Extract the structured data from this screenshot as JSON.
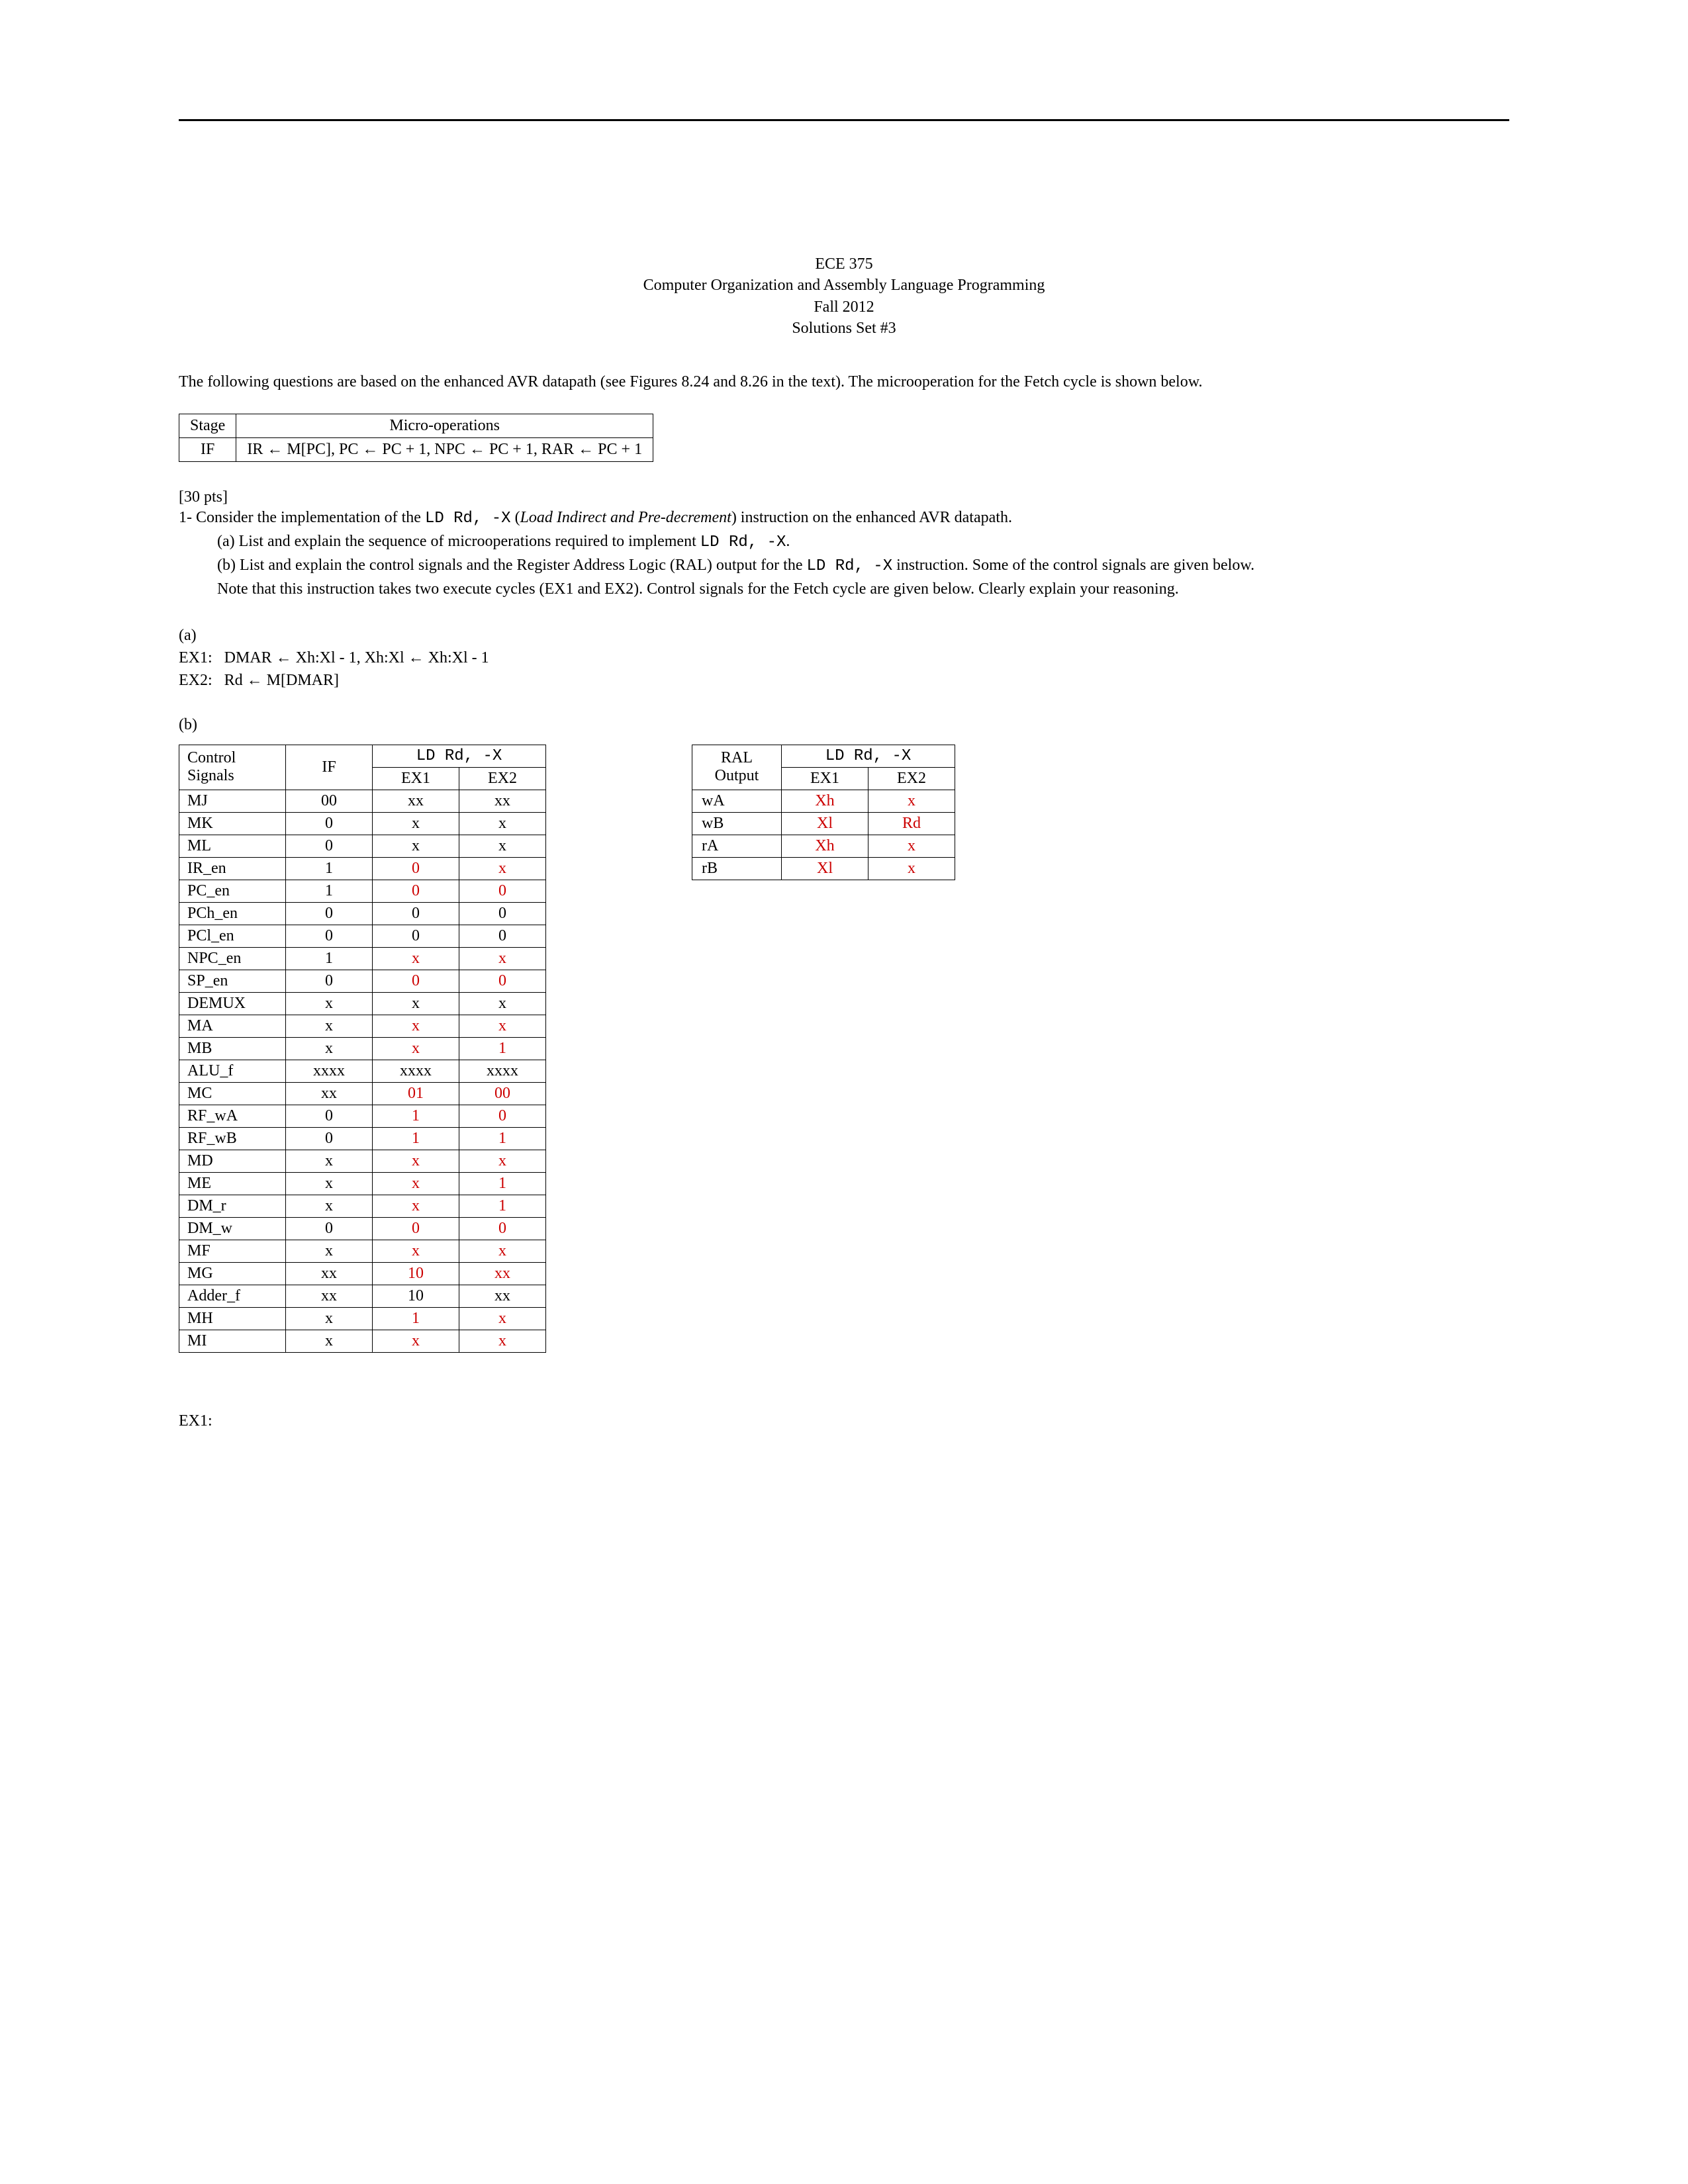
{
  "header": {
    "course": "ECE 375",
    "title": "Computer Organization and Assembly Language Programming",
    "term": "Fall 2012",
    "set": "Solutions Set #3"
  },
  "intro": "The following questions are based on the enhanced AVR datapath (see Figures 8.24 and 8.26 in the text).  The microoperation for the Fetch cycle is shown below.",
  "if_table": {
    "stage_header": "Stage",
    "ops_header": "Micro-operations",
    "stage": "IF",
    "ops": "IR ← M[PC], PC ← PC + 1, NPC ← PC + 1, RAR ← PC + 1"
  },
  "q1": {
    "pts": "[30 pts]",
    "prefix": "1-   ",
    "stem_pre": "Consider the implementation of the ",
    "code1": "LD Rd, -X",
    "stem_mid": "  (",
    "stem_it": "Load Indirect and Pre-decrement",
    "stem_post": ") instruction on the enhanced AVR datapath.",
    "a_pre": "(a)  List and explain the sequence of microoperations required to implement ",
    "a_code": "LD Rd, -X",
    "a_post": ".",
    "b_pre": "(b)  List and explain the control signals and the Register Address Logic (RAL) output for the ",
    "b_code": "LD Rd, -X",
    "b_post": " instruction.  Some of the control signals are given below.",
    "note1": "Note that this instruction takes two execute cycles (EX1 and EX2).  Control signals for the Fetch cycle are given below.  Clearly explain your reasoning.",
    "ans_a_label": "(a)",
    "ex1_label": "EX1:",
    "ex1_ops": "DMAR ← Xh:Xl - 1, Xh:Xl ← Xh:Xl - 1",
    "ex2_label": "EX2:",
    "ex2_ops": "Rd ← M[DMAR]",
    "b_label": "(b)"
  },
  "sig_head": {
    "ctrl": "Control Signals",
    "if": "IF",
    "instr": "LD Rd, -X",
    "ex1": "EX1",
    "ex2": "EX2"
  },
  "signals": [
    {
      "name": "MJ",
      "if": "00",
      "ex1": "xx",
      "ex2": "xx",
      "c1": "k",
      "c2": "k"
    },
    {
      "name": "MK",
      "if": "0",
      "ex1": "x",
      "ex2": "x",
      "c1": "k",
      "c2": "k"
    },
    {
      "name": "ML",
      "if": "0",
      "ex1": "x",
      "ex2": "x",
      "c1": "k",
      "c2": "k"
    },
    {
      "name": "IR_en",
      "if": "1",
      "ex1": "0",
      "ex2": "x",
      "c1": "r",
      "c2": "r"
    },
    {
      "name": "PC_en",
      "if": "1",
      "ex1": "0",
      "ex2": "0",
      "c1": "r",
      "c2": "r"
    },
    {
      "name": "PCh_en",
      "if": "0",
      "ex1": "0",
      "ex2": "0",
      "c1": "k",
      "c2": "k"
    },
    {
      "name": "PCl_en",
      "if": "0",
      "ex1": "0",
      "ex2": "0",
      "c1": "k",
      "c2": "k"
    },
    {
      "name": "NPC_en",
      "if": "1",
      "ex1": "x",
      "ex2": "x",
      "c1": "r",
      "c2": "r"
    },
    {
      "name": "SP_en",
      "if": "0",
      "ex1": "0",
      "ex2": "0",
      "c1": "r",
      "c2": "r"
    },
    {
      "name": "DEMUX",
      "if": "x",
      "ex1": "x",
      "ex2": "x",
      "c1": "k",
      "c2": "k"
    },
    {
      "name": "MA",
      "if": "x",
      "ex1": "x",
      "ex2": "x",
      "c1": "r",
      "c2": "r"
    },
    {
      "name": "MB",
      "if": "x",
      "ex1": "x",
      "ex2": "1",
      "c1": "r",
      "c2": "r"
    },
    {
      "name": "ALU_f",
      "if": "xxxx",
      "ex1": "xxxx",
      "ex2": "xxxx",
      "c1": "k",
      "c2": "k"
    },
    {
      "name": "MC",
      "if": "xx",
      "ex1": "01",
      "ex2": "00",
      "c1": "r",
      "c2": "r"
    },
    {
      "name": "RF_wA",
      "if": "0",
      "ex1": "1",
      "ex2": "0",
      "c1": "r",
      "c2": "r"
    },
    {
      "name": "RF_wB",
      "if": "0",
      "ex1": "1",
      "ex2": "1",
      "c1": "r",
      "c2": "r"
    },
    {
      "name": "MD",
      "if": "x",
      "ex1": "x",
      "ex2": "x",
      "c1": "r",
      "c2": "r"
    },
    {
      "name": "ME",
      "if": "x",
      "ex1": "x",
      "ex2": "1",
      "c1": "r",
      "c2": "r"
    },
    {
      "name": "DM_r",
      "if": "x",
      "ex1": "x",
      "ex2": "1",
      "c1": "r",
      "c2": "r"
    },
    {
      "name": "DM_w",
      "if": "0",
      "ex1": "0",
      "ex2": "0",
      "c1": "r",
      "c2": "r"
    },
    {
      "name": "MF",
      "if": "x",
      "ex1": "x",
      "ex2": "x",
      "c1": "r",
      "c2": "r"
    },
    {
      "name": "MG",
      "if": "xx",
      "ex1": "10",
      "ex2": "xx",
      "c1": "r",
      "c2": "r"
    },
    {
      "name": "Adder_f",
      "if": "xx",
      "ex1": "10",
      "ex2": "xx",
      "c1": "k",
      "c2": "k"
    },
    {
      "name": "MH",
      "if": "x",
      "ex1": "1",
      "ex2": "x",
      "c1": "r",
      "c2": "r"
    },
    {
      "name": "MI",
      "if": "x",
      "ex1": "x",
      "ex2": "x",
      "c1": "r",
      "c2": "r"
    }
  ],
  "ral_head": {
    "ral": "RAL Output",
    "instr": "LD Rd, -X",
    "ex1": "EX1",
    "ex2": "EX2"
  },
  "ral": [
    {
      "name": "wA",
      "ex1": "Xh",
      "ex2": "x"
    },
    {
      "name": "wB",
      "ex1": "Xl",
      "ex2": "Rd"
    },
    {
      "name": "rA",
      "ex1": "Xh",
      "ex2": "x"
    },
    {
      "name": "rB",
      "ex1": "Xl",
      "ex2": "x"
    }
  ],
  "ex1_followup": "EX1:"
}
